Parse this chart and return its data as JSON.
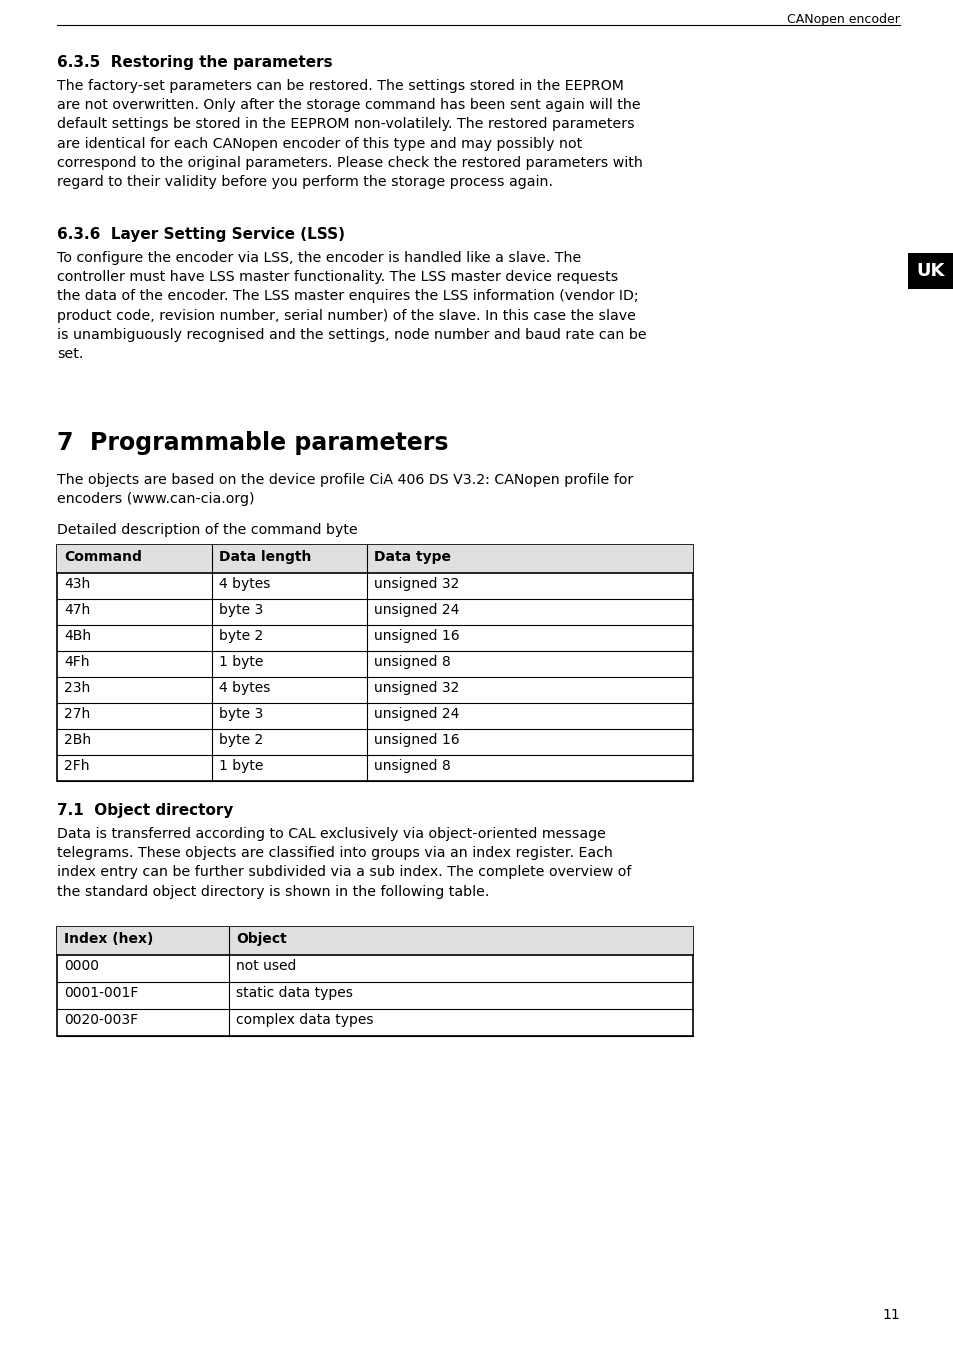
{
  "header_text": "CANopen encoder",
  "page_number": "11",
  "bg_color": "#ffffff",
  "text_color": "#000000",
  "section_635_title": "6.3.5  Restoring the parameters",
  "section_635_body": "The factory-set parameters can be restored. The settings stored in the EEPROM\nare not overwritten. Only after the storage command has been sent again will the\ndefault settings be stored in the EEPROM non-volatilely. The restored parameters\nare identical for each CANopen encoder of this type and may possibly not\ncorrespond to the original parameters. Please check the restored parameters with\nregard to their validity before you perform the storage process again.",
  "section_636_title": "6.3.6  Layer Setting Service (LSS)",
  "section_636_body": "To configure the encoder via LSS, the encoder is handled like a slave. The\ncontroller must have LSS master functionality. The LSS master device requests\nthe data of the encoder. The LSS master enquires the LSS information (vendor ID;\nproduct code, revision number, serial number) of the slave. In this case the slave\nis unambiguously recognised and the settings, node number and baud rate can be\nset.",
  "uk_label": "UK",
  "section_7_title": "7  Programmable parameters",
  "section_7_body1": "The objects are based on the device profile CiA 406 DS V3.2: CANopen profile for\nencoders (www.can-cia.org)",
  "section_7_body2": "Detailed description of the command byte",
  "table1_headers": [
    "Command",
    "Data length",
    "Data type"
  ],
  "table1_rows": [
    [
      "43h",
      "4 bytes",
      "unsigned 32"
    ],
    [
      "47h",
      "byte 3",
      "unsigned 24"
    ],
    [
      "4Bh",
      "byte 2",
      "unsigned 16"
    ],
    [
      "4Fh",
      "1 byte",
      "unsigned 8"
    ],
    [
      "23h",
      "4 bytes",
      "unsigned 32"
    ],
    [
      "27h",
      "byte 3",
      "unsigned 24"
    ],
    [
      "2Bh",
      "byte 2",
      "unsigned 16"
    ],
    [
      "2Fh",
      "1 byte",
      "unsigned 8"
    ]
  ],
  "section_71_title": "7.1  Object directory",
  "section_71_body": "Data is transferred according to CAL exclusively via object-oriented message\ntelegrams. These objects are classified into groups via an index register. Each\nindex entry can be further subdivided via a sub index. The complete overview of\nthe standard object directory is shown in the following table.",
  "table2_headers": [
    "Index (hex)",
    "Object"
  ],
  "table2_rows": [
    [
      "0000",
      "not used"
    ],
    [
      "0001-001F",
      "static data types"
    ],
    [
      "0020-003F",
      "complex data types"
    ]
  ]
}
